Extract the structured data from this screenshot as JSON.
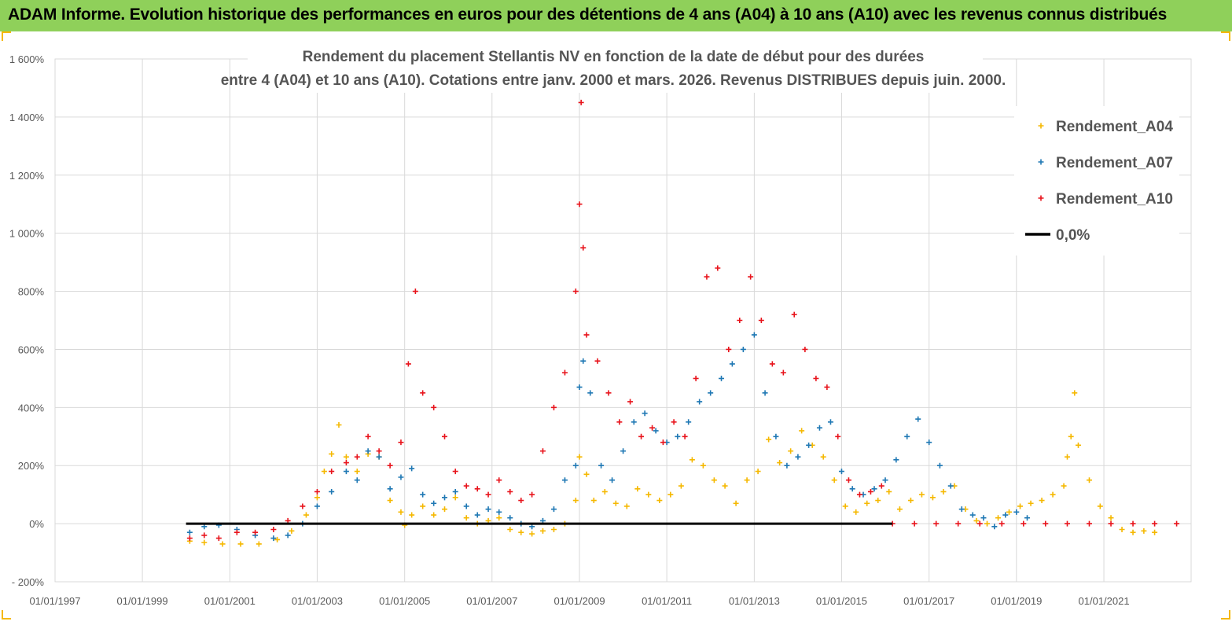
{
  "header": {
    "title": "ADAM Informe. Evolution historique des performances en euros pour des détentions de 4 ans (A04) à 10 ans (A10) avec les revenus connus distribués"
  },
  "chart_data": {
    "type": "scatter",
    "title": "Rendement du placement Stellantis NV en fonction de la date de début pour des durées",
    "subtitle": "entre 4 (A04) et 10 ans (A10). Cotations entre janv. 2000 et mars. 2026. Revenus DISTRIBUES depuis juin. 2000.",
    "xlabel": "",
    "ylabel": "",
    "xlim": [
      "1997-01-01",
      "2022-12-31"
    ],
    "ylim": [
      -200,
      1600
    ],
    "x_ticks": [
      "01/01/1997",
      "01/01/1999",
      "01/01/2001",
      "01/01/2003",
      "01/01/2005",
      "01/01/2007",
      "01/01/2009",
      "01/01/2011",
      "01/01/2013",
      "01/01/2015",
      "01/01/2017",
      "01/01/2019",
      "01/01/2021"
    ],
    "y_ticks": [
      -200,
      0,
      200,
      400,
      600,
      800,
      1000,
      1200,
      1400,
      1600
    ],
    "y_tick_labels": [
      "- 200%",
      "0%",
      "200%",
      "400%",
      "600%",
      "800%",
      "1 000%",
      "1 200%",
      "1 400%",
      "1 600%"
    ],
    "grid": true,
    "legend_position": "top-right",
    "series": [
      {
        "name": "Rendement_A04",
        "color": "#f5b800",
        "marker": "plus",
        "points": [
          [
            "2000-02-01",
            -60
          ],
          [
            "2000-06-01",
            -65
          ],
          [
            "2000-11-01",
            -70
          ],
          [
            "2001-04-01",
            -70
          ],
          [
            "2001-09-01",
            -70
          ],
          [
            "2002-02-01",
            -55
          ],
          [
            "2002-06-01",
            -25
          ],
          [
            "2002-10-01",
            30
          ],
          [
            "2003-01-01",
            90
          ],
          [
            "2003-03-01",
            180
          ],
          [
            "2003-05-01",
            240
          ],
          [
            "2003-07-01",
            340
          ],
          [
            "2003-09-01",
            230
          ],
          [
            "2003-12-01",
            180
          ],
          [
            "2004-03-01",
            240
          ],
          [
            "2004-06-01",
            230
          ],
          [
            "2004-09-01",
            80
          ],
          [
            "2004-12-01",
            40
          ],
          [
            "2005-01-01",
            -5
          ],
          [
            "2005-03-01",
            30
          ],
          [
            "2005-06-01",
            60
          ],
          [
            "2005-09-01",
            30
          ],
          [
            "2005-12-01",
            50
          ],
          [
            "2006-03-01",
            90
          ],
          [
            "2006-06-01",
            20
          ],
          [
            "2006-09-01",
            0
          ],
          [
            "2006-12-01",
            10
          ],
          [
            "2007-03-01",
            20
          ],
          [
            "2007-06-01",
            -20
          ],
          [
            "2007-09-01",
            -30
          ],
          [
            "2007-12-01",
            -35
          ],
          [
            "2008-03-01",
            -25
          ],
          [
            "2008-06-01",
            -20
          ],
          [
            "2008-09-01",
            0
          ],
          [
            "2008-12-01",
            80
          ],
          [
            "2009-01-01",
            230
          ],
          [
            "2009-03-01",
            170
          ],
          [
            "2009-05-01",
            80
          ],
          [
            "2009-08-01",
            110
          ],
          [
            "2009-11-01",
            70
          ],
          [
            "2010-02-01",
            60
          ],
          [
            "2010-05-01",
            120
          ],
          [
            "2010-08-01",
            100
          ],
          [
            "2010-11-01",
            80
          ],
          [
            "2011-02-01",
            100
          ],
          [
            "2011-05-01",
            130
          ],
          [
            "2011-08-01",
            220
          ],
          [
            "2011-11-01",
            200
          ],
          [
            "2012-02-01",
            150
          ],
          [
            "2012-05-01",
            130
          ],
          [
            "2012-08-01",
            70
          ],
          [
            "2012-11-01",
            150
          ],
          [
            "2013-02-01",
            180
          ],
          [
            "2013-05-01",
            290
          ],
          [
            "2013-08-01",
            210
          ],
          [
            "2013-11-01",
            250
          ],
          [
            "2014-02-01",
            320
          ],
          [
            "2014-05-01",
            270
          ],
          [
            "2014-08-01",
            230
          ],
          [
            "2014-11-01",
            150
          ],
          [
            "2015-02-01",
            60
          ],
          [
            "2015-05-01",
            40
          ],
          [
            "2015-08-01",
            70
          ],
          [
            "2015-11-01",
            80
          ],
          [
            "2016-02-01",
            110
          ],
          [
            "2016-05-01",
            50
          ],
          [
            "2016-08-01",
            80
          ],
          [
            "2016-11-01",
            100
          ],
          [
            "2017-02-01",
            90
          ],
          [
            "2017-05-01",
            110
          ],
          [
            "2017-08-01",
            130
          ],
          [
            "2017-11-01",
            50
          ],
          [
            "2018-02-01",
            10
          ],
          [
            "2018-05-01",
            0
          ],
          [
            "2018-08-01",
            20
          ],
          [
            "2018-11-01",
            40
          ],
          [
            "2019-02-01",
            60
          ],
          [
            "2019-05-01",
            70
          ],
          [
            "2019-08-01",
            80
          ],
          [
            "2019-11-01",
            100
          ],
          [
            "2020-02-01",
            130
          ],
          [
            "2020-03-01",
            230
          ],
          [
            "2020-04-01",
            300
          ],
          [
            "2020-05-01",
            450
          ],
          [
            "2020-06-01",
            270
          ],
          [
            "2020-09-01",
            150
          ],
          [
            "2020-12-01",
            60
          ],
          [
            "2021-03-01",
            20
          ],
          [
            "2021-06-01",
            -20
          ],
          [
            "2021-09-01",
            -30
          ],
          [
            "2021-12-01",
            -25
          ],
          [
            "2022-03-01",
            -30
          ]
        ]
      },
      {
        "name": "Rendement_A07",
        "color": "#1f78b4",
        "marker": "plus",
        "points": [
          [
            "2000-02-01",
            -30
          ],
          [
            "2000-06-01",
            -10
          ],
          [
            "2000-10-01",
            -5
          ],
          [
            "2001-03-01",
            -20
          ],
          [
            "2001-08-01",
            -40
          ],
          [
            "2002-01-01",
            -50
          ],
          [
            "2002-05-01",
            -40
          ],
          [
            "2002-09-01",
            0
          ],
          [
            "2003-01-01",
            60
          ],
          [
            "2003-05-01",
            110
          ],
          [
            "2003-09-01",
            180
          ],
          [
            "2003-12-01",
            150
          ],
          [
            "2004-03-01",
            250
          ],
          [
            "2004-06-01",
            230
          ],
          [
            "2004-09-01",
            120
          ],
          [
            "2004-12-01",
            160
          ],
          [
            "2005-03-01",
            190
          ],
          [
            "2005-06-01",
            100
          ],
          [
            "2005-09-01",
            70
          ],
          [
            "2005-12-01",
            90
          ],
          [
            "2006-03-01",
            110
          ],
          [
            "2006-06-01",
            60
          ],
          [
            "2006-09-01",
            30
          ],
          [
            "2006-12-01",
            50
          ],
          [
            "2007-03-01",
            40
          ],
          [
            "2007-06-01",
            20
          ],
          [
            "2007-09-01",
            0
          ],
          [
            "2007-12-01",
            -10
          ],
          [
            "2008-03-01",
            10
          ],
          [
            "2008-06-01",
            50
          ],
          [
            "2008-09-01",
            150
          ],
          [
            "2008-12-01",
            200
          ],
          [
            "2009-01-01",
            470
          ],
          [
            "2009-02-01",
            560
          ],
          [
            "2009-04-01",
            450
          ],
          [
            "2009-07-01",
            200
          ],
          [
            "2009-10-01",
            150
          ],
          [
            "2010-01-01",
            250
          ],
          [
            "2010-04-01",
            350
          ],
          [
            "2010-07-01",
            380
          ],
          [
            "2010-10-01",
            320
          ],
          [
            "2011-01-01",
            280
          ],
          [
            "2011-04-01",
            300
          ],
          [
            "2011-07-01",
            350
          ],
          [
            "2011-10-01",
            420
          ],
          [
            "2012-01-01",
            450
          ],
          [
            "2012-04-01",
            500
          ],
          [
            "2012-07-01",
            550
          ],
          [
            "2012-10-01",
            600
          ],
          [
            "2013-01-01",
            650
          ],
          [
            "2013-04-01",
            450
          ],
          [
            "2013-07-01",
            300
          ],
          [
            "2013-10-01",
            200
          ],
          [
            "2014-01-01",
            230
          ],
          [
            "2014-04-01",
            270
          ],
          [
            "2014-07-01",
            330
          ],
          [
            "2014-10-01",
            350
          ],
          [
            "2015-01-01",
            180
          ],
          [
            "2015-04-01",
            120
          ],
          [
            "2015-07-01",
            100
          ],
          [
            "2015-10-01",
            120
          ],
          [
            "2016-01-01",
            150
          ],
          [
            "2016-04-01",
            220
          ],
          [
            "2016-07-01",
            300
          ],
          [
            "2016-10-01",
            360
          ],
          [
            "2017-01-01",
            280
          ],
          [
            "2017-04-01",
            200
          ],
          [
            "2017-07-01",
            130
          ],
          [
            "2017-10-01",
            50
          ],
          [
            "2018-01-01",
            30
          ],
          [
            "2018-04-01",
            20
          ],
          [
            "2018-07-01",
            -10
          ],
          [
            "2018-10-01",
            30
          ],
          [
            "2019-01-01",
            40
          ],
          [
            "2019-04-01",
            20
          ]
        ]
      },
      {
        "name": "Rendement_A10",
        "color": "#e8141c",
        "marker": "plus",
        "points": [
          [
            "2000-02-01",
            -50
          ],
          [
            "2000-06-01",
            -40
          ],
          [
            "2000-10-01",
            -50
          ],
          [
            "2001-03-01",
            -30
          ],
          [
            "2001-08-01",
            -30
          ],
          [
            "2002-01-01",
            -20
          ],
          [
            "2002-05-01",
            10
          ],
          [
            "2002-09-01",
            60
          ],
          [
            "2003-01-01",
            110
          ],
          [
            "2003-05-01",
            180
          ],
          [
            "2003-09-01",
            210
          ],
          [
            "2003-12-01",
            230
          ],
          [
            "2004-03-01",
            300
          ],
          [
            "2004-06-01",
            250
          ],
          [
            "2004-09-01",
            200
          ],
          [
            "2004-12-01",
            280
          ],
          [
            "2005-02-01",
            550
          ],
          [
            "2005-04-01",
            800
          ],
          [
            "2005-06-01",
            450
          ],
          [
            "2005-09-01",
            400
          ],
          [
            "2005-12-01",
            300
          ],
          [
            "2006-03-01",
            180
          ],
          [
            "2006-06-01",
            130
          ],
          [
            "2006-09-01",
            120
          ],
          [
            "2006-12-01",
            100
          ],
          [
            "2007-03-01",
            150
          ],
          [
            "2007-06-01",
            110
          ],
          [
            "2007-09-01",
            80
          ],
          [
            "2007-12-01",
            100
          ],
          [
            "2008-03-01",
            250
          ],
          [
            "2008-06-01",
            400
          ],
          [
            "2008-09-01",
            520
          ],
          [
            "2008-12-01",
            800
          ],
          [
            "2009-01-01",
            1100
          ],
          [
            "2009-01-15",
            1450
          ],
          [
            "2009-02-01",
            950
          ],
          [
            "2009-03-01",
            650
          ],
          [
            "2009-06-01",
            560
          ],
          [
            "2009-09-01",
            450
          ],
          [
            "2009-12-01",
            350
          ],
          [
            "2010-03-01",
            420
          ],
          [
            "2010-06-01",
            300
          ],
          [
            "2010-09-01",
            330
          ],
          [
            "2010-12-01",
            280
          ],
          [
            "2011-03-01",
            350
          ],
          [
            "2011-06-01",
            300
          ],
          [
            "2011-09-01",
            500
          ],
          [
            "2011-12-01",
            850
          ],
          [
            "2012-03-01",
            880
          ],
          [
            "2012-06-01",
            600
          ],
          [
            "2012-09-01",
            700
          ],
          [
            "2012-12-01",
            850
          ],
          [
            "2013-03-01",
            700
          ],
          [
            "2013-06-01",
            550
          ],
          [
            "2013-09-01",
            520
          ],
          [
            "2013-12-01",
            720
          ],
          [
            "2014-03-01",
            600
          ],
          [
            "2014-06-01",
            500
          ],
          [
            "2014-09-01",
            470
          ],
          [
            "2014-12-01",
            300
          ],
          [
            "2015-03-01",
            150
          ],
          [
            "2015-06-01",
            100
          ],
          [
            "2015-09-01",
            110
          ],
          [
            "2015-12-01",
            130
          ],
          [
            "2016-03-01",
            0
          ],
          [
            "2016-09-01",
            0
          ],
          [
            "2017-03-01",
            0
          ],
          [
            "2017-09-01",
            0
          ],
          [
            "2018-03-01",
            0
          ],
          [
            "2018-09-01",
            0
          ],
          [
            "2019-03-01",
            0
          ],
          [
            "2019-09-01",
            0
          ],
          [
            "2020-03-01",
            0
          ],
          [
            "2020-09-01",
            0
          ],
          [
            "2021-03-01",
            0
          ],
          [
            "2021-09-01",
            0
          ],
          [
            "2022-03-01",
            0
          ],
          [
            "2022-09-01",
            0
          ]
        ]
      },
      {
        "name": "0,0%",
        "color": "#000000",
        "marker": "line",
        "points": [
          [
            "2000-01-01",
            0
          ],
          [
            "2016-03-01",
            0
          ]
        ]
      }
    ]
  }
}
